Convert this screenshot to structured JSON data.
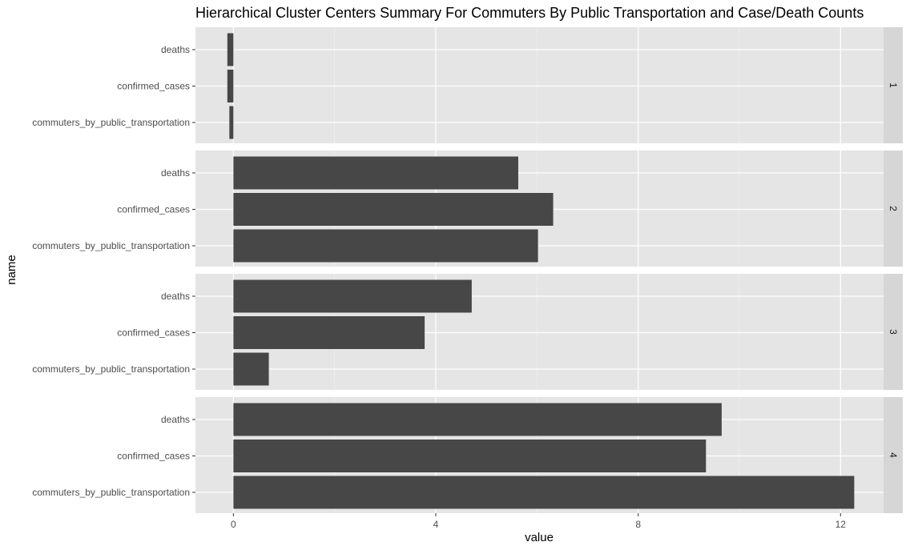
{
  "chart_data": {
    "type": "bar",
    "orientation": "horizontal",
    "faceted": true,
    "title": "Hierarchical Cluster Centers Summary For Commuters By Public Transportation and Case/Death Counts",
    "xlabel": "value",
    "ylabel": "name",
    "xlim": [
      -0.75,
      12.85
    ],
    "xticks": [
      0,
      4,
      8,
      12
    ],
    "categories": [
      "deaths",
      "confirmed_cases",
      "commuters_by_public_transportation"
    ],
    "facets": [
      {
        "label": "1",
        "values": [
          -0.12,
          -0.12,
          -0.08
        ]
      },
      {
        "label": "2",
        "values": [
          5.63,
          6.32,
          6.02
        ]
      },
      {
        "label": "3",
        "values": [
          4.71,
          3.78,
          0.7
        ]
      },
      {
        "label": "4",
        "values": [
          9.65,
          9.34,
          12.27
        ]
      }
    ],
    "grid": true,
    "legend": "none",
    "bar_color": "#474747",
    "panel_bg": "#e5e5e5",
    "strip_bg": "#d6d6d6"
  }
}
